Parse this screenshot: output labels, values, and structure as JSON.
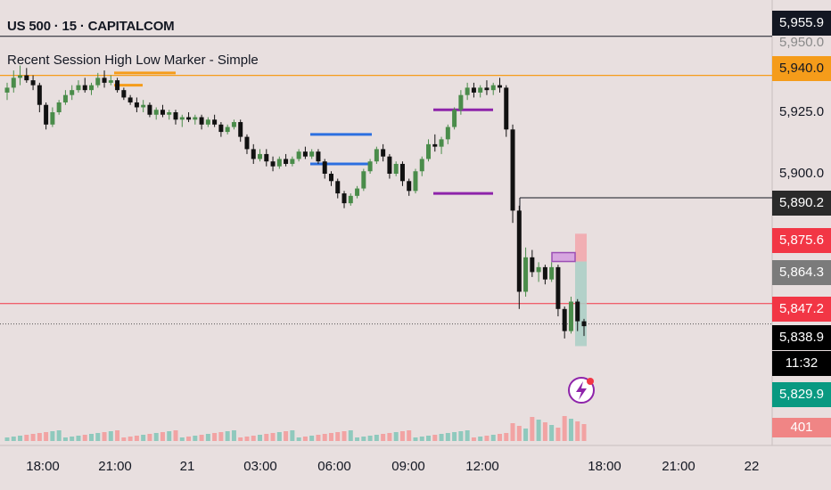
{
  "header": {
    "symbol_line": "US 500 · 15 · CAPITALCOM",
    "indicator_line": "Recent Session High Low Marker - Simple"
  },
  "price_axis": {
    "ticks": [
      "5,925.0",
      "5,900.0"
    ],
    "partial_tick": "5,950.0",
    "tags": {
      "top": "5,955.9",
      "orange": "5,940.0",
      "prev_high": "5,890.2",
      "target": "5,875.6",
      "mid": "5,864.3",
      "red_line": "5,847.2",
      "last": "5,838.9",
      "countdown": "11:32",
      "stop": "5,829.9",
      "volume": "401"
    }
  },
  "time_axis": [
    "18:00",
    "21:00",
    "21",
    "03:00",
    "06:00",
    "09:00",
    "12:00",
    "18:00",
    "21:00",
    "22"
  ],
  "colors": {
    "background": "#e8dfdf",
    "bull": "#4a8c4a",
    "bear": "#111111",
    "orange": "#f59c1a",
    "blue": "#2b6fe0",
    "purple": "#8e24aa",
    "red": "#f23645",
    "teal": "#089981"
  },
  "icons": {
    "alert": "lightning-alert-icon"
  },
  "chart_data": {
    "type": "candlestick",
    "title": "US 500 · 15 · CAPITALCOM",
    "xlabel": "",
    "ylabel": "",
    "ylim": [
      5810,
      5960
    ],
    "candles_ohlc": [
      [
        5933,
        5937,
        5930,
        5935
      ],
      [
        5935,
        5942,
        5933,
        5939
      ],
      [
        5939,
        5944,
        5936,
        5940
      ],
      [
        5940,
        5943,
        5937,
        5938
      ],
      [
        5938,
        5940,
        5934,
        5936
      ],
      [
        5936,
        5937,
        5925,
        5928
      ],
      [
        5928,
        5929,
        5918,
        5920
      ],
      [
        5920,
        5927,
        5919,
        5925
      ],
      [
        5925,
        5930,
        5924,
        5929
      ],
      [
        5929,
        5934,
        5928,
        5932
      ],
      [
        5932,
        5936,
        5930,
        5934
      ],
      [
        5934,
        5938,
        5933,
        5936
      ],
      [
        5936,
        5939,
        5933,
        5934
      ],
      [
        5934,
        5937,
        5932,
        5936
      ],
      [
        5936,
        5941,
        5935,
        5939
      ],
      [
        5939,
        5942,
        5935,
        5937
      ],
      [
        5937,
        5940,
        5936,
        5938
      ],
      [
        5938,
        5939,
        5933,
        5934
      ],
      [
        5934,
        5935,
        5930,
        5931
      ],
      [
        5931,
        5932,
        5928,
        5929
      ],
      [
        5929,
        5931,
        5925,
        5927
      ],
      [
        5927,
        5930,
        5925,
        5928
      ],
      [
        5928,
        5929,
        5923,
        5924
      ],
      [
        5924,
        5927,
        5922,
        5926
      ],
      [
        5926,
        5928,
        5923,
        5924
      ],
      [
        5924,
        5926,
        5922,
        5925
      ],
      [
        5925,
        5926,
        5920,
        5922
      ],
      [
        5922,
        5924,
        5919,
        5923
      ],
      [
        5923,
        5925,
        5921,
        5922
      ],
      [
        5922,
        5924,
        5920,
        5923
      ],
      [
        5923,
        5924,
        5918,
        5920
      ],
      [
        5920,
        5923,
        5919,
        5922
      ],
      [
        5922,
        5924,
        5919,
        5920
      ],
      [
        5920,
        5921,
        5915,
        5917
      ],
      [
        5917,
        5920,
        5916,
        5919
      ],
      [
        5919,
        5922,
        5918,
        5921
      ],
      [
        5921,
        5922,
        5913,
        5915
      ],
      [
        5915,
        5916,
        5908,
        5910
      ],
      [
        5910,
        5912,
        5904,
        5906
      ],
      [
        5906,
        5910,
        5905,
        5908
      ],
      [
        5908,
        5910,
        5903,
        5905
      ],
      [
        5905,
        5907,
        5901,
        5903
      ],
      [
        5903,
        5907,
        5902,
        5906
      ],
      [
        5906,
        5908,
        5903,
        5904
      ],
      [
        5904,
        5907,
        5903,
        5906
      ],
      [
        5906,
        5910,
        5905,
        5909
      ],
      [
        5909,
        5911,
        5906,
        5907
      ],
      [
        5907,
        5910,
        5906,
        5909
      ],
      [
        5909,
        5910,
        5904,
        5905
      ],
      [
        5905,
        5906,
        5898,
        5900
      ],
      [
        5900,
        5901,
        5895,
        5897
      ],
      [
        5897,
        5898,
        5890,
        5892
      ],
      [
        5892,
        5893,
        5886,
        5888
      ],
      [
        5888,
        5892,
        5887,
        5891
      ],
      [
        5891,
        5895,
        5890,
        5894
      ],
      [
        5894,
        5902,
        5893,
        5901
      ],
      [
        5901,
        5906,
        5900,
        5905
      ],
      [
        5905,
        5911,
        5904,
        5910
      ],
      [
        5910,
        5912,
        5905,
        5907
      ],
      [
        5907,
        5908,
        5898,
        5900
      ],
      [
        5900,
        5905,
        5899,
        5904
      ],
      [
        5904,
        5905,
        5895,
        5897
      ],
      [
        5897,
        5898,
        5891,
        5893
      ],
      [
        5893,
        5902,
        5892,
        5901
      ],
      [
        5901,
        5907,
        5899,
        5906
      ],
      [
        5906,
        5914,
        5905,
        5912
      ],
      [
        5912,
        5916,
        5909,
        5911
      ],
      [
        5911,
        5915,
        5908,
        5914
      ],
      [
        5914,
        5920,
        5912,
        5919
      ],
      [
        5919,
        5927,
        5918,
        5926
      ],
      [
        5926,
        5934,
        5924,
        5932
      ],
      [
        5932,
        5937,
        5930,
        5935
      ],
      [
        5935,
        5937,
        5931,
        5933
      ],
      [
        5933,
        5936,
        5931,
        5935
      ],
      [
        5935,
        5938,
        5932,
        5934
      ],
      [
        5934,
        5937,
        5932,
        5936
      ],
      [
        5936,
        5939,
        5933,
        5935
      ],
      [
        5935,
        5936,
        5915,
        5918
      ],
      [
        5918,
        5920,
        5880,
        5885
      ],
      [
        5885,
        5887,
        5845,
        5852
      ],
      [
        5852,
        5870,
        5850,
        5866
      ],
      [
        5866,
        5869,
        5858,
        5860
      ],
      [
        5860,
        5864,
        5856,
        5862
      ],
      [
        5862,
        5863,
        5855,
        5857
      ],
      [
        5857,
        5864,
        5856,
        5862
      ],
      [
        5862,
        5863,
        5842,
        5845
      ],
      [
        5845,
        5846,
        5833,
        5836
      ],
      [
        5836,
        5850,
        5835,
        5848
      ],
      [
        5848,
        5849,
        5836,
        5840
      ],
      [
        5840,
        5841,
        5834,
        5838
      ]
    ],
    "horizontal_levels": [
      5955.9,
      5940.0,
      5890.2,
      5847.2,
      5838.9
    ],
    "session_markers": [
      {
        "color": "orange",
        "high": 5941,
        "low": 5936
      },
      {
        "color": "blue",
        "high": 5916,
        "low": 5904
      },
      {
        "color": "purple",
        "high": 5926,
        "low": 5892
      }
    ],
    "position_tool": {
      "target": 5875.6,
      "entry": 5864.3,
      "stop": 5829.9
    },
    "volume_last": 401
  }
}
